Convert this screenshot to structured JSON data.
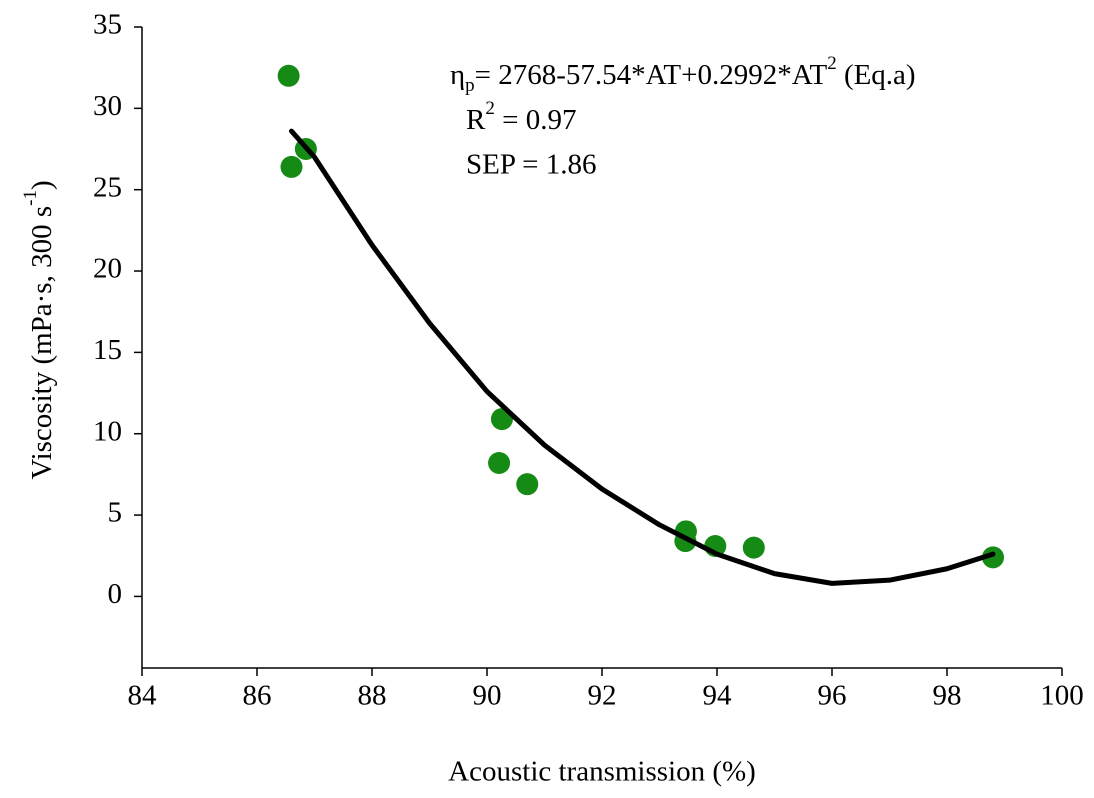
{
  "chart_data": {
    "type": "scatter",
    "xlabel": "Acoustic transmission (%)",
    "ylabel": {
      "main": "Viscosity (mPa·s, 300 s",
      "sup": "-1",
      "end": ")"
    },
    "annotation": [
      {
        "symbol": "η",
        "sub": "p",
        "text": "= 2768-57.54*AT+0.2992*AT",
        "sup": "2",
        "end": " (Eq.a)"
      },
      {
        "text": "R",
        "sup": "2",
        "end": " = 0.97"
      },
      {
        "text": "SEP = 1.86"
      }
    ],
    "xlim": [
      84,
      100
    ],
    "xticks": [
      84,
      86,
      88,
      90,
      92,
      94,
      96,
      98,
      100
    ],
    "ylim": [
      -4.4,
      35
    ],
    "yticks": [
      0,
      5,
      10,
      15,
      20,
      25,
      30,
      35
    ],
    "series": [
      {
        "type": "scatter",
        "color": "#158a15",
        "x": [
          86.55,
          86.6,
          86.85,
          90.26,
          90.21,
          90.7,
          93.46,
          93.45,
          93.97,
          94.64,
          98.8
        ],
        "values": [
          32.0,
          26.4,
          27.5,
          10.9,
          8.2,
          6.9,
          4.0,
          3.4,
          3.1,
          3.0,
          2.4
        ]
      },
      {
        "type": "line",
        "color": "#000000",
        "x": [
          86.6,
          87,
          88,
          89,
          90,
          91,
          92,
          93,
          94,
          95,
          96,
          97,
          98,
          98.8
        ],
        "values": [
          28.6,
          27.0,
          21.6,
          16.8,
          12.6,
          9.3,
          6.6,
          4.4,
          2.6,
          1.4,
          0.8,
          1.0,
          1.7,
          2.6
        ]
      }
    ]
  }
}
